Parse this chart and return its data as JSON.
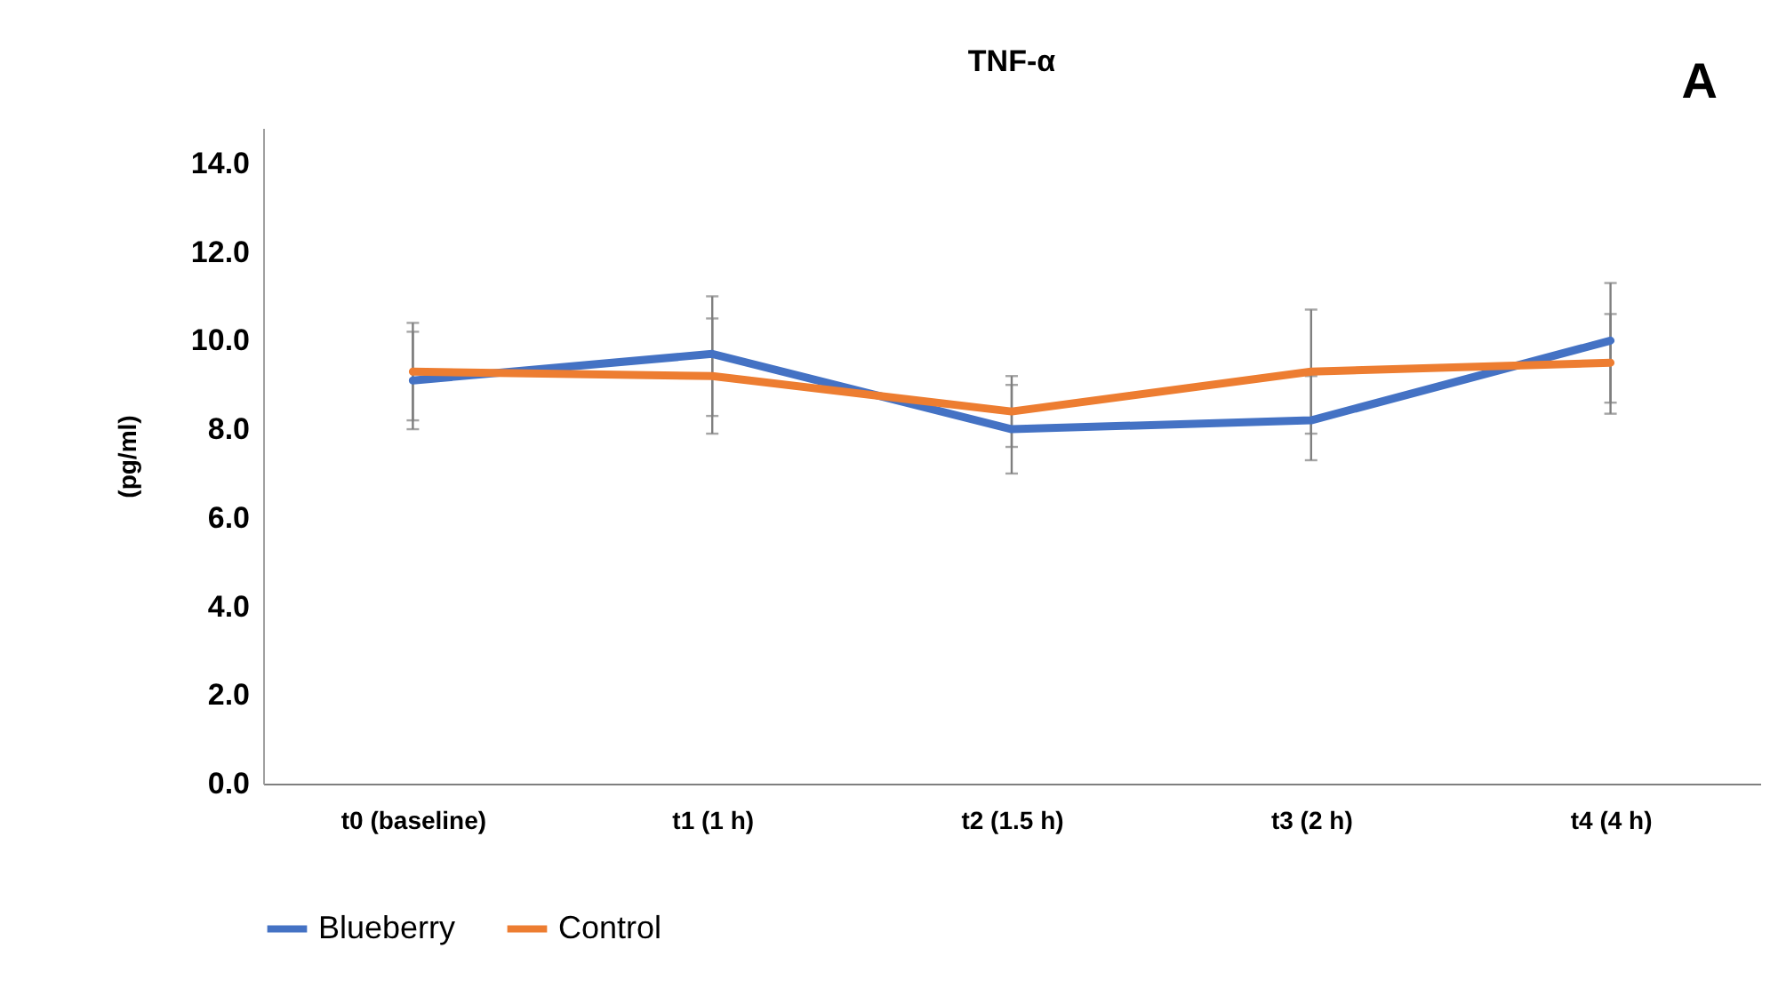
{
  "chart_data": {
    "type": "line",
    "title": "TNF-α",
    "ylabel": "(pg/ml)",
    "annotations": [
      "A"
    ],
    "categories": [
      "t0 (baseline)",
      "t1 (1 h)",
      "t2 (1.5 h)",
      "t3 (2 h)",
      "t4 (4 h)"
    ],
    "ylim": [
      0,
      14.8
    ],
    "yticks": [
      {
        "value": 0,
        "label": "0.0"
      },
      {
        "value": 2,
        "label": "2.0"
      },
      {
        "value": 4,
        "label": "4.0"
      },
      {
        "value": 6,
        "label": "6.0"
      },
      {
        "value": 8,
        "label": "8.0"
      },
      {
        "value": 10,
        "label": "10.0"
      },
      {
        "value": 12,
        "label": "12.0"
      },
      {
        "value": 14,
        "label": "14.0"
      }
    ],
    "grid": false,
    "legend": "bottom",
    "series": [
      {
        "name": "Blueberry",
        "color": "#4472c4",
        "values": [
          9.1,
          9.7,
          8.0,
          8.2,
          10.0
        ],
        "errors": [
          [
            8.0,
            10.2
          ],
          [
            8.3,
            11.0
          ],
          [
            7.0,
            9.0
          ],
          [
            7.3,
            9.2
          ],
          [
            8.6,
            11.3
          ]
        ]
      },
      {
        "name": "Control",
        "color": "#ed7d31",
        "values": [
          9.3,
          9.2,
          8.4,
          9.3,
          9.5
        ],
        "errors": [
          [
            8.2,
            10.4
          ],
          [
            7.9,
            10.5
          ],
          [
            7.6,
            9.2
          ],
          [
            7.9,
            10.7
          ],
          [
            8.35,
            10.6
          ]
        ]
      }
    ]
  }
}
